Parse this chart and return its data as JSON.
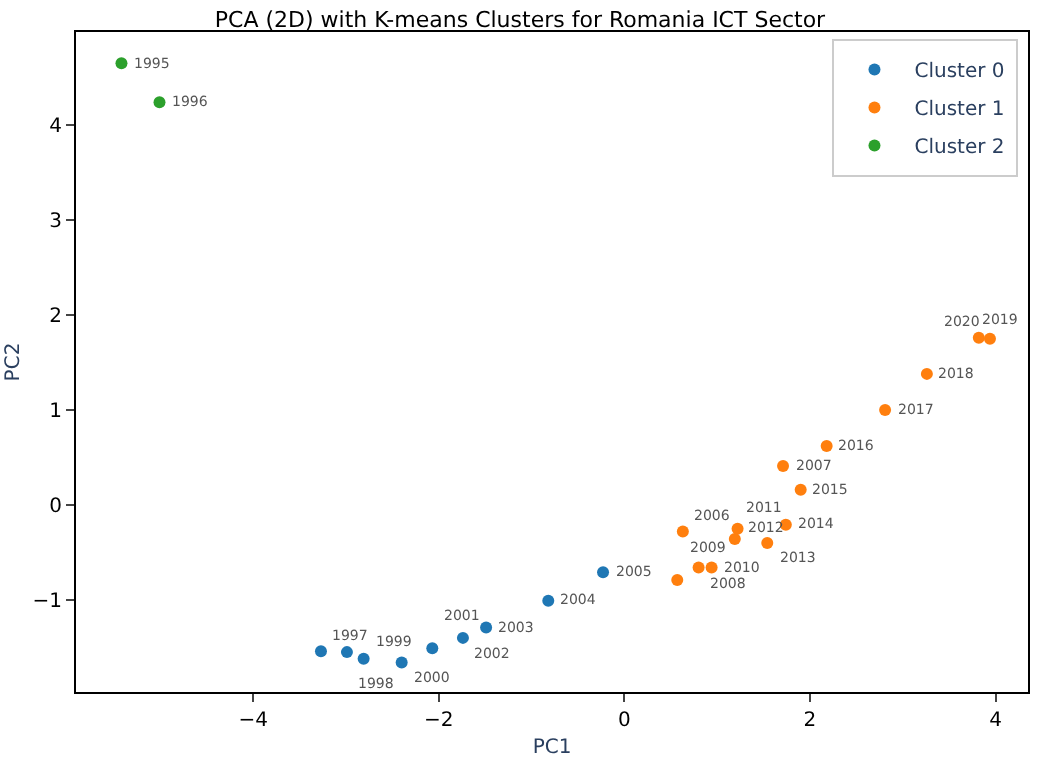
{
  "chart_data": {
    "type": "scatter",
    "title": "PCA (2D) with K-means Clusters for Romania ICT Sector",
    "xlabel": "PC1",
    "ylabel": "PC2",
    "xlim": [
      -5.91,
      4.35
    ],
    "ylim": [
      -1.97,
      4.98
    ],
    "xticks": [
      -4,
      -2,
      0,
      2,
      4
    ],
    "yticks": [
      -1,
      0,
      1,
      2,
      3,
      4
    ],
    "grid": false,
    "legend": "top right",
    "marker": "circle",
    "series": [
      {
        "name": "Cluster 0",
        "color": "#1f77b4",
        "x": [
          -3.27,
          -2.99,
          -2.81,
          -2.4,
          -2.07,
          -1.74,
          -1.49,
          -0.82,
          -0.23
        ],
        "values": [
          -1.54,
          -1.55,
          -1.62,
          -1.66,
          -1.51,
          -1.4,
          -1.29,
          -1.01,
          -0.71
        ]
      },
      {
        "name": "Cluster 1",
        "color": "#ff7f0e",
        "x": [
          0.63,
          1.71,
          0.8,
          0.57,
          0.94,
          1.19,
          1.22,
          1.54,
          1.74,
          1.9,
          2.18,
          2.81,
          3.26,
          3.82,
          3.94
        ],
        "values": [
          -0.28,
          0.41,
          -0.66,
          -0.79,
          -0.66,
          -0.36,
          -0.25,
          -0.4,
          -0.21,
          0.16,
          0.62,
          1.0,
          1.38,
          1.76,
          1.75
        ]
      },
      {
        "name": "Cluster 2",
        "color": "#2ca02c",
        "x": [
          -5.42,
          -5.01
        ],
        "values": [
          4.65,
          4.24
        ]
      }
    ],
    "annotations": [
      {
        "text": "1995",
        "x": -5.42,
        "y": 4.65
      },
      {
        "text": "1996",
        "x": -5.01,
        "y": 4.24
      },
      {
        "text": "1997",
        "x": -3.27,
        "y": -1.54
      },
      {
        "text": "1998",
        "x": -2.99,
        "y": -1.55
      },
      {
        "text": "1999",
        "x": -2.81,
        "y": -1.62
      },
      {
        "text": "2000",
        "x": -2.4,
        "y": -1.66
      },
      {
        "text": "2001",
        "x": -2.07,
        "y": -1.51
      },
      {
        "text": "2002",
        "x": -1.74,
        "y": -1.4
      },
      {
        "text": "2003",
        "x": -1.49,
        "y": -1.29
      },
      {
        "text": "2004",
        "x": -0.82,
        "y": -1.01
      },
      {
        "text": "2005",
        "x": -0.23,
        "y": -0.71
      },
      {
        "text": "2006",
        "x": 0.63,
        "y": -0.28
      },
      {
        "text": "2007",
        "x": 1.71,
        "y": 0.41
      },
      {
        "text": "2008",
        "x": 0.8,
        "y": -0.66
      },
      {
        "text": "2009",
        "x": 0.57,
        "y": -0.79
      },
      {
        "text": "2010",
        "x": 0.94,
        "y": -0.66
      },
      {
        "text": "2011",
        "x": 1.19,
        "y": -0.36
      },
      {
        "text": "2012",
        "x": 1.22,
        "y": -0.25
      },
      {
        "text": "2013",
        "x": 1.54,
        "y": -0.4
      },
      {
        "text": "2014",
        "x": 1.74,
        "y": -0.21
      },
      {
        "text": "2015",
        "x": 1.9,
        "y": 0.16
      },
      {
        "text": "2016",
        "x": 2.18,
        "y": 0.62
      },
      {
        "text": "2017",
        "x": 2.81,
        "y": 1.0
      },
      {
        "text": "2018",
        "x": 3.26,
        "y": 1.38
      },
      {
        "text": "2019",
        "x": 3.82,
        "y": 1.76
      },
      {
        "text": "2020",
        "x": 3.94,
        "y": 1.75
      }
    ]
  }
}
